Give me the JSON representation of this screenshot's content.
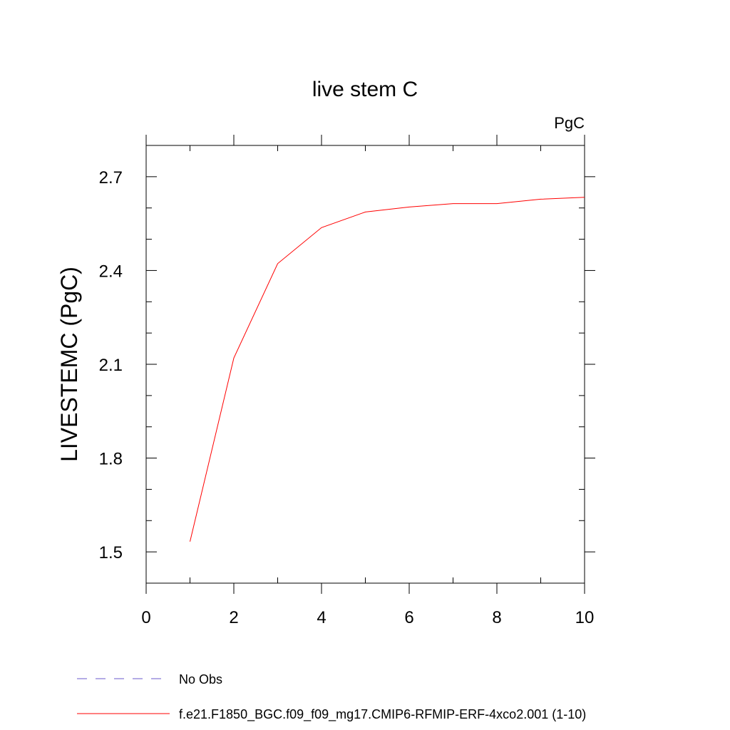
{
  "chart_data": {
    "type": "line",
    "title": "live stem C",
    "units_label": "PgC",
    "ylabel": "LIVESTEMC  (PgC)",
    "xlabel": "",
    "xlim": [
      0,
      10
    ],
    "ylim": [
      1.4,
      2.8
    ],
    "x_ticks": [
      0,
      2,
      4,
      6,
      8,
      10
    ],
    "x_tick_labels": [
      "0",
      "2",
      "4",
      "6",
      "8",
      "10"
    ],
    "x_minor_ticks": [
      1,
      3,
      5,
      7,
      9
    ],
    "y_ticks": [
      1.5,
      1.8,
      2.1,
      2.4,
      2.7
    ],
    "y_tick_labels": [
      "1.5",
      "1.8",
      "2.1",
      "2.4",
      "2.7"
    ],
    "y_minor_ticks": [
      1.4,
      1.6,
      1.7,
      1.9,
      2.0,
      2.2,
      2.3,
      2.5,
      2.6,
      2.8
    ],
    "grid": false,
    "legend_position": "bottom",
    "series": [
      {
        "name": "f.e21.F1850_BGC.f09_f09_mg17.CMIP6-RFMIP-ERF-4xco2.001 (1-10)",
        "color": "#ff0000",
        "dash": "solid",
        "x": [
          1,
          2,
          3,
          4,
          5,
          6,
          7,
          8,
          9,
          10
        ],
        "y": [
          1.533,
          2.12,
          2.422,
          2.537,
          2.587,
          2.603,
          2.614,
          2.614,
          2.628,
          2.634
        ]
      }
    ],
    "legend": [
      {
        "label": "No Obs",
        "color": "#6a5acd",
        "dash": "dashed"
      },
      {
        "label": "f.e21.F1850_BGC.f09_f09_mg17.CMIP6-RFMIP-ERF-4xco2.001 (1-10)",
        "color": "#ff0000",
        "dash": "solid"
      }
    ]
  }
}
